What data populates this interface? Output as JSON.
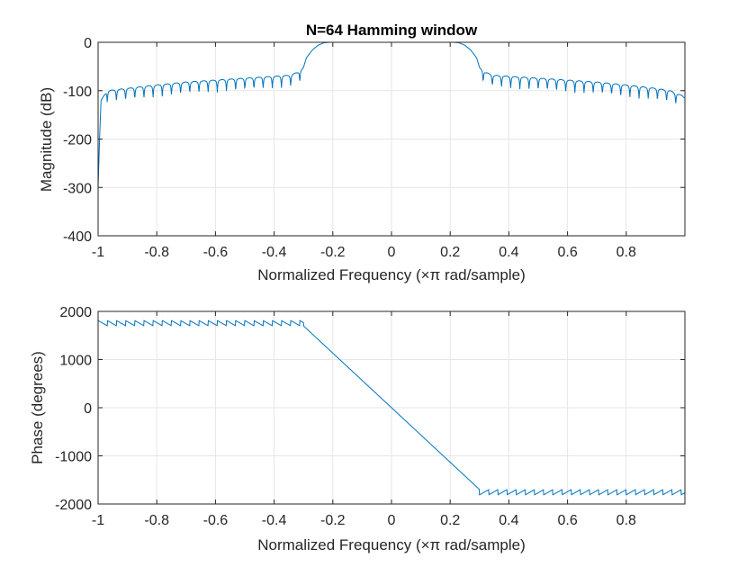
{
  "chart_data": [
    {
      "type": "line",
      "title": "N=64 Hamming window",
      "xlabel": "Normalized Frequency  (×π rad/sample)",
      "ylabel": "Magnitude (dB)",
      "xlim": [
        -1,
        1
      ],
      "ylim": [
        -400,
        0
      ],
      "xticks": [
        -1,
        -0.8,
        -0.6,
        -0.4,
        -0.2,
        0,
        0.2,
        0.4,
        0.6,
        0.8
      ],
      "xtick_labels": [
        "-1",
        "-0.8",
        "-0.6",
        "-0.4",
        "-0.2",
        "0",
        "0.2",
        "0.4",
        "0.6",
        "0.8"
      ],
      "yticks": [
        0,
        -100,
        -200,
        -300,
        -400
      ],
      "ytick_labels": [
        "0",
        "-100",
        "-200",
        "-300",
        "-400"
      ],
      "grid": true,
      "series": [
        {
          "color": "#0072BD",
          "x": [
            -1.0,
            -0.995,
            -0.99,
            -0.97,
            -0.9,
            -0.8,
            -0.7,
            -0.6,
            -0.5,
            -0.4,
            -0.35,
            -0.32,
            -0.3,
            -0.29,
            -0.27,
            -0.25,
            -0.23,
            -0.21,
            -0.2,
            0,
            0.2,
            0.21,
            0.23,
            0.25,
            0.27,
            0.29,
            0.3,
            0.32,
            0.35,
            0.4,
            0.5,
            0.6,
            0.7,
            0.8,
            0.9,
            0.95,
            0.99,
            0.998
          ],
          "y": [
            -300,
            -200,
            -120,
            -100,
            -95,
            -88,
            -82,
            -78,
            -74,
            -70,
            -68,
            -62,
            -52,
            -32,
            -16,
            -6,
            -1,
            0,
            0,
            0,
            0,
            0,
            -1,
            -6,
            -16,
            -32,
            -52,
            -62,
            -68,
            -70,
            -74,
            -78,
            -82,
            -88,
            -95,
            -100,
            -110,
            -115
          ],
          "null_depth_db": 22
        }
      ]
    },
    {
      "type": "line",
      "title": "",
      "xlabel": "Normalized Frequency  (×π rad/sample)",
      "ylabel": "Phase (degrees)",
      "xlim": [
        -1,
        1
      ],
      "ylim": [
        -2000,
        2000
      ],
      "xticks": [
        -1,
        -0.8,
        -0.6,
        -0.4,
        -0.2,
        0,
        0.2,
        0.4,
        0.6,
        0.8
      ],
      "xtick_labels": [
        "-1",
        "-0.8",
        "-0.6",
        "-0.4",
        "-0.2",
        "0",
        "0.2",
        "0.4",
        "0.6",
        "0.8"
      ],
      "yticks": [
        2000,
        1000,
        0,
        -1000,
        -2000
      ],
      "ytick_labels": [
        "2000",
        "1000",
        "0",
        "-1000",
        "-2000"
      ],
      "grid": true,
      "series": [
        {
          "color": "#0072BD",
          "x": [
            -1.0,
            -0.3,
            -0.3,
            0.3,
            0.3,
            1.0
          ],
          "y": [
            1750,
            1750,
            1700,
            -1700,
            -1750,
            -1750
          ],
          "sawtooth_amplitude_deg": 180,
          "sawtooth_period": 0.03125
        }
      ]
    }
  ]
}
